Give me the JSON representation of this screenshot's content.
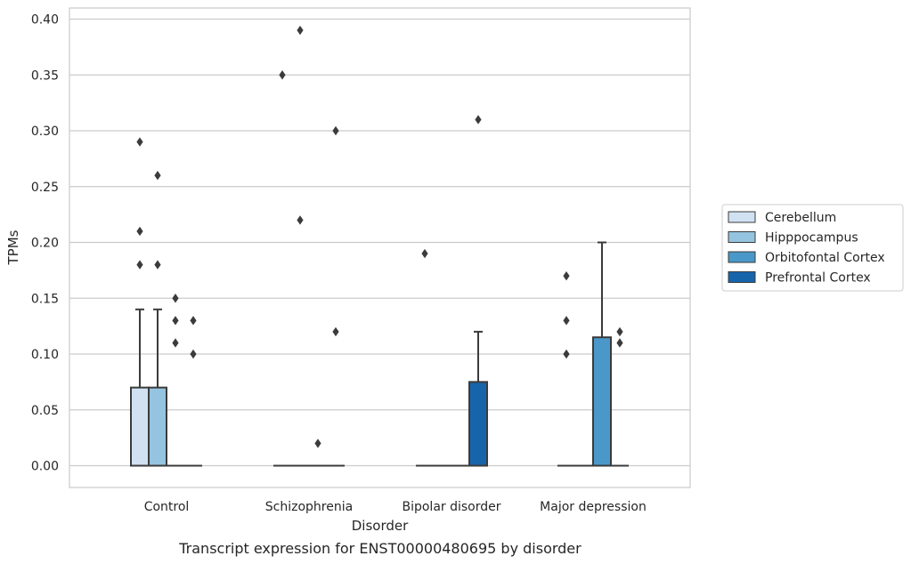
{
  "chart_data": {
    "type": "box",
    "title": "",
    "caption": "Transcript expression for ENST00000480695 by disorder",
    "xlabel": "Disorder",
    "ylabel": "TPMs",
    "ylim": [
      -0.02,
      0.41
    ],
    "yticks": [
      0.0,
      0.05,
      0.1,
      0.15,
      0.2,
      0.25,
      0.3,
      0.35,
      0.4
    ],
    "ytick_labels": [
      "0.00",
      "0.05",
      "0.10",
      "0.15",
      "0.20",
      "0.25",
      "0.30",
      "0.35",
      "0.40"
    ],
    "grid": "horizontal",
    "legend_position": "right",
    "categories": [
      "Control",
      "Schizophrenia",
      "Bipolar disorder",
      "Major depression"
    ],
    "series": [
      {
        "name": "Cerebellum",
        "color": "#d0e1f2"
      },
      {
        "name": "Hipppocampus",
        "color": "#94c4df"
      },
      {
        "name": "Orbitofontal Cortex",
        "color": "#4a98c9"
      },
      {
        "name": "Prefrontal Cortex",
        "color": "#1764ab"
      }
    ],
    "boxes": [
      {
        "category": "Control",
        "series": "Cerebellum",
        "q1": 0.0,
        "median": 0.0,
        "q3": 0.07,
        "whisker_low": 0.0,
        "whisker_high": 0.14,
        "outliers": [
          0.29,
          0.21,
          0.18
        ]
      },
      {
        "category": "Control",
        "series": "Hipppocampus",
        "q1": 0.0,
        "median": 0.0,
        "q3": 0.07,
        "whisker_low": 0.0,
        "whisker_high": 0.14,
        "outliers": [
          0.26,
          0.18
        ]
      },
      {
        "category": "Control",
        "series": "Orbitofontal Cortex",
        "q1": 0.0,
        "median": 0.0,
        "q3": 0.0,
        "whisker_low": 0.0,
        "whisker_high": 0.0,
        "outliers": [
          0.15,
          0.13,
          0.11
        ]
      },
      {
        "category": "Control",
        "series": "Prefrontal Cortex",
        "q1": 0.0,
        "median": 0.0,
        "q3": 0.0,
        "whisker_low": 0.0,
        "whisker_high": 0.0,
        "outliers": [
          0.13,
          0.1
        ]
      },
      {
        "category": "Schizophrenia",
        "series": "Cerebellum",
        "q1": 0.0,
        "median": 0.0,
        "q3": 0.0,
        "whisker_low": 0.0,
        "whisker_high": 0.0,
        "outliers": [
          0.35
        ]
      },
      {
        "category": "Schizophrenia",
        "series": "Hipppocampus",
        "q1": 0.0,
        "median": 0.0,
        "q3": 0.0,
        "whisker_low": 0.0,
        "whisker_high": 0.0,
        "outliers": [
          0.39,
          0.22
        ]
      },
      {
        "category": "Schizophrenia",
        "series": "Orbitofontal Cortex",
        "q1": 0.0,
        "median": 0.0,
        "q3": 0.0,
        "whisker_low": 0.0,
        "whisker_high": 0.0,
        "outliers": [
          0.02
        ]
      },
      {
        "category": "Schizophrenia",
        "series": "Prefrontal Cortex",
        "q1": 0.0,
        "median": 0.0,
        "q3": 0.0,
        "whisker_low": 0.0,
        "whisker_high": 0.0,
        "outliers": [
          0.3,
          0.12
        ]
      },
      {
        "category": "Bipolar disorder",
        "series": "Cerebellum",
        "q1": 0.0,
        "median": 0.0,
        "q3": 0.0,
        "whisker_low": 0.0,
        "whisker_high": 0.0,
        "outliers": [
          0.19
        ]
      },
      {
        "category": "Bipolar disorder",
        "series": "Hipppocampus",
        "q1": 0.0,
        "median": 0.0,
        "q3": 0.0,
        "whisker_low": 0.0,
        "whisker_high": 0.0,
        "outliers": []
      },
      {
        "category": "Bipolar disorder",
        "series": "Orbitofontal Cortex",
        "q1": 0.0,
        "median": 0.0,
        "q3": 0.0,
        "whisker_low": 0.0,
        "whisker_high": 0.0,
        "outliers": []
      },
      {
        "category": "Bipolar disorder",
        "series": "Prefrontal Cortex",
        "q1": 0.0,
        "median": 0.0,
        "q3": 0.075,
        "whisker_low": 0.0,
        "whisker_high": 0.12,
        "outliers": [
          0.31
        ]
      },
      {
        "category": "Major depression",
        "series": "Cerebellum",
        "q1": 0.0,
        "median": 0.0,
        "q3": 0.0,
        "whisker_low": 0.0,
        "whisker_high": 0.0,
        "outliers": [
          0.17,
          0.13,
          0.1
        ]
      },
      {
        "category": "Major depression",
        "series": "Hipppocampus",
        "q1": 0.0,
        "median": 0.0,
        "q3": 0.0,
        "whisker_low": 0.0,
        "whisker_high": 0.0,
        "outliers": []
      },
      {
        "category": "Major depression",
        "series": "Orbitofontal Cortex",
        "q1": 0.0,
        "median": 0.0,
        "q3": 0.115,
        "whisker_low": 0.0,
        "whisker_high": 0.2,
        "outliers": []
      },
      {
        "category": "Major depression",
        "series": "Prefrontal Cortex",
        "q1": 0.0,
        "median": 0.0,
        "q3": 0.0,
        "whisker_low": 0.0,
        "whisker_high": 0.0,
        "outliers": [
          0.12,
          0.11
        ]
      }
    ]
  }
}
